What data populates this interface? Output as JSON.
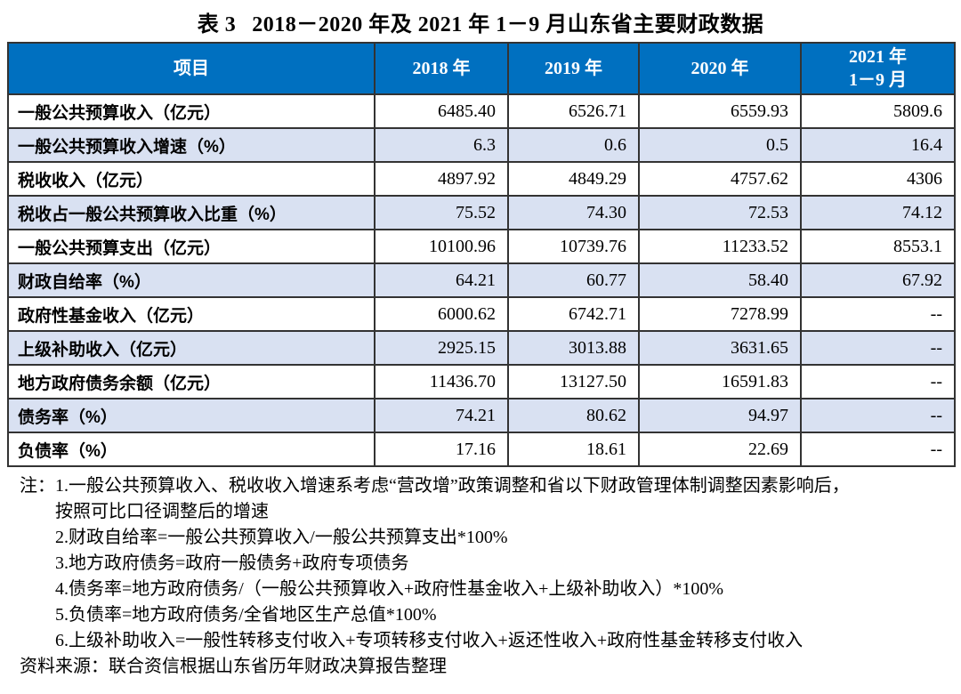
{
  "colors": {
    "header_bg": "#0070C0",
    "alt_row_bg": "#D9E1F2",
    "border": "#333333"
  },
  "title": {
    "prefix": "表 3",
    "main": "2018－2020 年及 2021 年 1－9 月山东省主要财政数据"
  },
  "table": {
    "columns": [
      "项目",
      "2018 年",
      "2019 年",
      "2020 年",
      {
        "line1": "2021 年",
        "line2": "1－9 月"
      }
    ],
    "rows": [
      {
        "label": "一般公共预算收入（亿元）",
        "values": [
          "6485.40",
          "6526.71",
          "6559.93",
          "5809.6"
        ]
      },
      {
        "label": "一般公共预算收入增速（%）",
        "values": [
          "6.3",
          "0.6",
          "0.5",
          "16.4"
        ]
      },
      {
        "label": "税收收入（亿元）",
        "values": [
          "4897.92",
          "4849.29",
          "4757.62",
          "4306"
        ]
      },
      {
        "label": "税收占一般公共预算收入比重（%）",
        "values": [
          "75.52",
          "74.30",
          "72.53",
          "74.12"
        ]
      },
      {
        "label": "一般公共预算支出（亿元）",
        "values": [
          "10100.96",
          "10739.76",
          "11233.52",
          "8553.1"
        ]
      },
      {
        "label": "财政自给率（%）",
        "values": [
          "64.21",
          "60.77",
          "58.40",
          "67.92"
        ]
      },
      {
        "label": "政府性基金收入（亿元）",
        "values": [
          "6000.62",
          "6742.71",
          "7278.99",
          "--"
        ]
      },
      {
        "label": "上级补助收入（亿元）",
        "values": [
          "2925.15",
          "3013.88",
          "3631.65",
          "--"
        ]
      },
      {
        "label": "地方政府债务余额（亿元）",
        "values": [
          "11436.70",
          "13127.50",
          "16591.83",
          "--"
        ]
      },
      {
        "label": "债务率（%）",
        "values": [
          "74.21",
          "80.62",
          "94.97",
          "--"
        ]
      },
      {
        "label": "负债率（%）",
        "values": [
          "17.16",
          "18.61",
          "22.69",
          "--"
        ]
      }
    ]
  },
  "notes": {
    "prefix": "注：",
    "items": [
      {
        "text": "1.一般公共预算收入、税收收入增速系考虑“营改增”政策调整和省以下财政管理体制调整因素影响后，"
      },
      {
        "text": "按照可比口径调整后的增速"
      },
      {
        "text": "2.财政自给率=一般公共预算收入/一般公共预算支出*100%"
      },
      {
        "text": "3.地方政府债务=政府一般债务+政府专项债务"
      },
      {
        "text": "4.债务率=地方政府债务/（一般公共预算收入+政府性基金收入+上级补助收入）*100%"
      },
      {
        "text": "5.负债率=地方政府债务/全省地区生产总值*100%"
      },
      {
        "text": "6.上级补助收入=一般性转移支付收入+专项转移支付收入+返还性收入+政府性基金转移支付收入"
      }
    ],
    "source": "资料来源：联合资信根据山东省历年财政决算报告整理"
  }
}
